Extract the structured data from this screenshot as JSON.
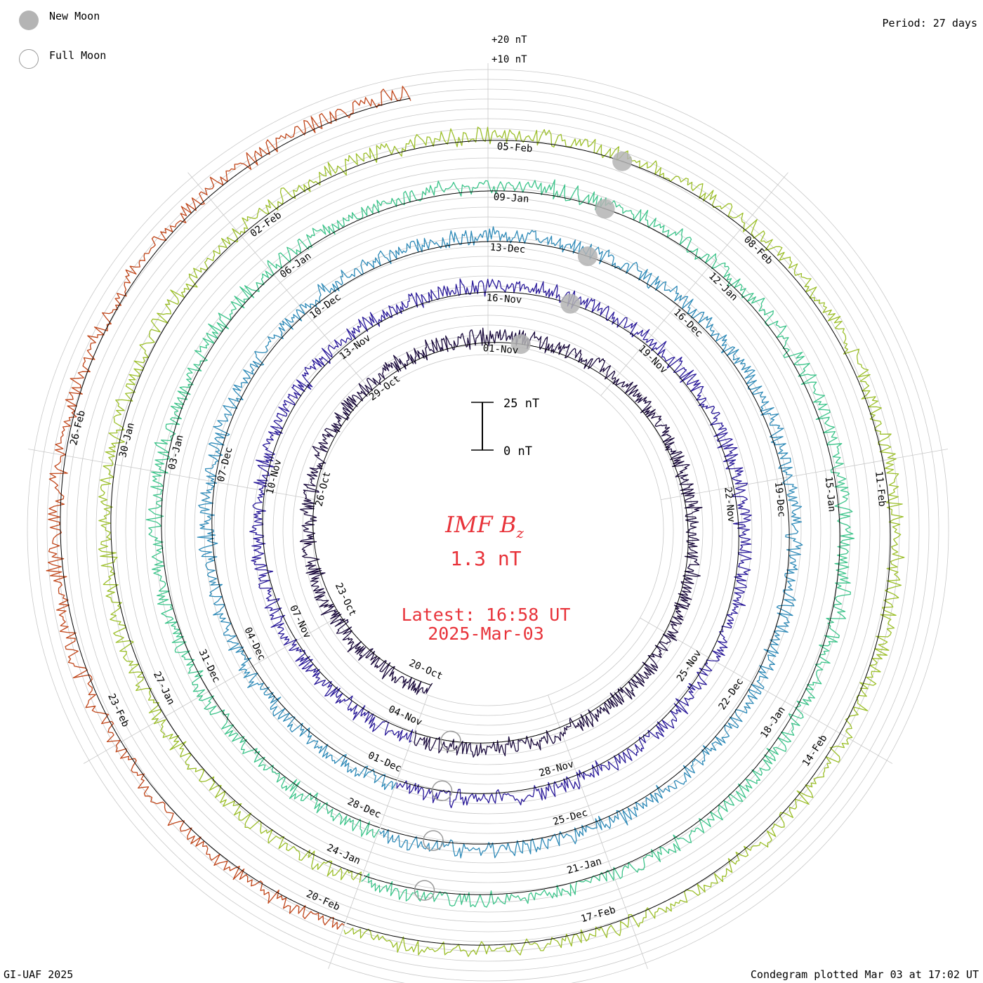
{
  "legend": {
    "new_moon": "New Moon",
    "full_moon": "Full Moon",
    "new_moon_color": "#b4b4b4",
    "full_moon_color": "#9a9a9a"
  },
  "period": "Period: 27 days",
  "footer": {
    "left": "GI-UAF 2025",
    "right": "Condegram plotted Mar 03 at 17:02 UT"
  },
  "chart_data": {
    "type": "line",
    "title": "IMF B",
    "title_subscript": "z",
    "current_value": "1.3 nT",
    "latest_label": "Latest: 16:58 UT",
    "latest_date": "2025-Mar-03",
    "scale_bar": {
      "top": "25 nT",
      "bottom": "0 nT"
    },
    "ring_scale_labels": [
      "+20 nT",
      "+10 nT"
    ],
    "period_days": 27,
    "title_color": "#e8333a",
    "cycles": [
      {
        "color": "#1a0a3c",
        "date_labels": [
          "20-Oct",
          "23-Oct",
          "26-Oct",
          "29-Oct",
          "01-Nov"
        ]
      },
      {
        "color": "#2a1a9a",
        "date_labels": [
          "04-Nov",
          "07-Nov",
          "10-Nov",
          "13-Nov",
          "16-Nov",
          "19-Nov",
          "22-Nov",
          "25-Nov",
          "28-Nov"
        ]
      },
      {
        "color": "#2e8ab8",
        "date_labels": [
          "01-Dec",
          "04-Dec",
          "07-Dec",
          "10-Dec",
          "13-Dec",
          "16-Dec",
          "19-Dec",
          "22-Dec",
          "25-Dec"
        ]
      },
      {
        "color": "#3cc48a",
        "date_labels": [
          "28-Dec",
          "31-Dec",
          "03-Jan",
          "06-Jan",
          "09-Jan",
          "12-Jan",
          "15-Jan",
          "18-Jan",
          "21-Jan"
        ]
      },
      {
        "color": "#9cbf2a",
        "date_labels": [
          "24-Jan",
          "27-Jan",
          "30-Jan",
          "02-Feb",
          "05-Feb",
          "08-Feb",
          "11-Feb",
          "14-Feb",
          "17-Feb"
        ]
      },
      {
        "color": "#c0461a",
        "date_labels": [
          "20-Feb",
          "23-Feb",
          "26-Feb"
        ]
      }
    ]
  }
}
